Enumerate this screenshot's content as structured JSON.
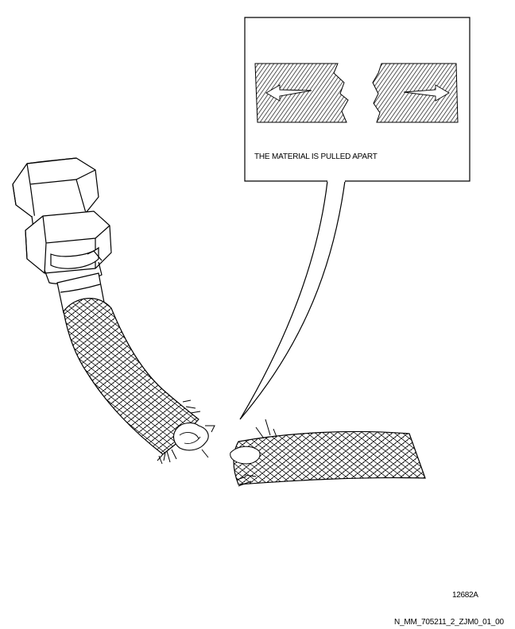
{
  "callout": {
    "caption": "THE MATERIAL IS PULLED APART"
  },
  "figure_number": "12682A",
  "document_reference": "N_MM_705211_2_ZJM0_01_00"
}
